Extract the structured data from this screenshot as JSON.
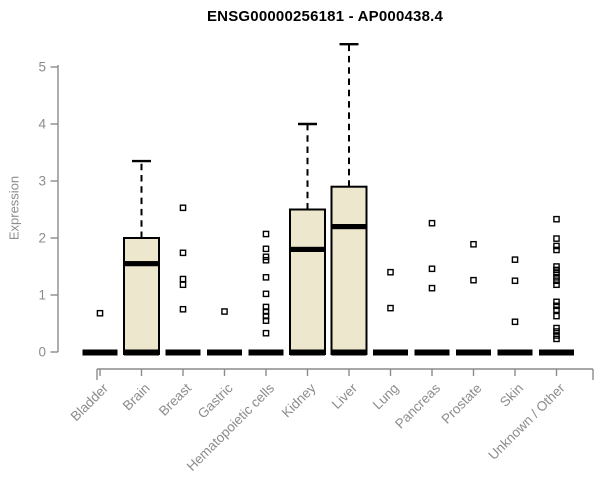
{
  "chart_data": {
    "type": "boxplot",
    "title": "ENSG00000256181 - AP000438.4",
    "ylabel": "Expression",
    "ylim": [
      0,
      5.45
    ],
    "yticks": [
      0,
      1,
      2,
      3,
      4,
      5
    ],
    "grid": false,
    "categories": [
      "Bladder",
      "Brain",
      "Breast",
      "Gastric",
      "Hematopoietic cells",
      "Kidney",
      "Liver",
      "Lung",
      "Pancreas",
      "Prostate",
      "Skin",
      "Unknown / Other"
    ],
    "boxes": [
      {
        "category": "Bladder",
        "q1": 0,
        "median": 0,
        "q3": 0,
        "whisker_low": 0,
        "whisker_high": 0,
        "outliers": [
          0.68
        ]
      },
      {
        "category": "Brain",
        "q1": 0,
        "median": 1.55,
        "q3": 2.0,
        "whisker_low": 0,
        "whisker_high": 3.35,
        "outliers": []
      },
      {
        "category": "Breast",
        "q1": 0,
        "median": 0,
        "q3": 0,
        "whisker_low": 0,
        "whisker_high": 0,
        "outliers": [
          2.53,
          1.74,
          1.28,
          1.18,
          0.75
        ]
      },
      {
        "category": "Gastric",
        "q1": 0,
        "median": 0,
        "q3": 0,
        "whisker_low": 0,
        "whisker_high": 0,
        "outliers": [
          0.71
        ]
      },
      {
        "category": "Hematopoietic cells",
        "q1": 0,
        "median": 0,
        "q3": 0,
        "whisker_low": 0,
        "whisker_high": 0,
        "outliers": [
          2.07,
          1.81,
          1.67,
          1.61,
          1.31,
          1.02,
          0.79,
          0.71,
          0.63,
          0.55,
          0.33
        ]
      },
      {
        "category": "Kidney",
        "q1": 0,
        "median": 1.8,
        "q3": 2.5,
        "whisker_low": 0,
        "whisker_high": 4.0,
        "outliers": []
      },
      {
        "category": "Liver",
        "q1": 0,
        "median": 2.2,
        "q3": 2.9,
        "whisker_low": 0,
        "whisker_high": 5.4,
        "outliers": []
      },
      {
        "category": "Lung",
        "q1": 0,
        "median": 0,
        "q3": 0,
        "whisker_low": 0,
        "whisker_high": 0,
        "outliers": [
          1.4,
          0.77
        ]
      },
      {
        "category": "Pancreas",
        "q1": 0,
        "median": 0,
        "q3": 0,
        "whisker_low": 0,
        "whisker_high": 0,
        "outliers": [
          2.26,
          1.46,
          1.12
        ]
      },
      {
        "category": "Prostate",
        "q1": 0,
        "median": 0,
        "q3": 0,
        "whisker_low": 0,
        "whisker_high": 0,
        "outliers": [
          1.89,
          1.26
        ]
      },
      {
        "category": "Skin",
        "q1": 0,
        "median": 0,
        "q3": 0,
        "whisker_low": 0,
        "whisker_high": 0,
        "outliers": [
          1.62,
          1.25,
          0.53
        ]
      },
      {
        "category": "Unknown / Other",
        "q1": 0,
        "median": 0,
        "q3": 0,
        "whisker_low": 0,
        "whisker_high": 0,
        "outliers": [
          2.33,
          1.99,
          1.86,
          1.79,
          1.5,
          1.44,
          1.38,
          1.31,
          1.25,
          1.18,
          0.88,
          0.81,
          0.74,
          0.63,
          0.42,
          0.36,
          0.29,
          0.23
        ]
      }
    ],
    "colors": {
      "box_fill": "#EDE7CE",
      "box_border": "#000000",
      "median": "#000000",
      "whisker": "#000000",
      "outlier": "#000000",
      "axis": "#8c8c8c",
      "tick_label": "#8c8c8c",
      "title": "#000000",
      "background": "#ffffff"
    }
  }
}
